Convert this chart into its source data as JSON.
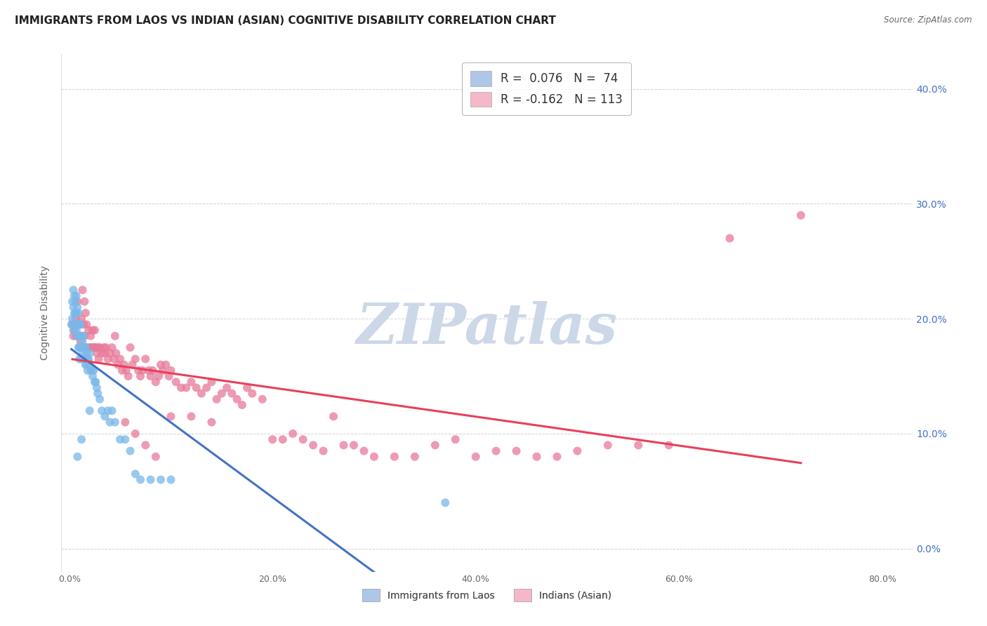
{
  "title": "IMMIGRANTS FROM LAOS VS INDIAN (ASIAN) COGNITIVE DISABILITY CORRELATION CHART",
  "source": "Source: ZipAtlas.com",
  "xlabel_ticks": [
    "0.0%",
    "20.0%",
    "40.0%",
    "60.0%",
    "80.0%"
  ],
  "ylabel_ticks": [
    "0.0%",
    "10.0%",
    "20.0%",
    "30.0%",
    "40.0%"
  ],
  "xlabel_values": [
    0.0,
    0.2,
    0.4,
    0.6,
    0.8
  ],
  "ylabel_values": [
    0.0,
    0.1,
    0.2,
    0.3,
    0.4
  ],
  "xlim": [
    -0.008,
    0.83
  ],
  "ylim": [
    -0.02,
    0.43
  ],
  "laos_color": "#7ab8e8",
  "laos_alpha": 0.75,
  "laos_trend_color": "#4472c4",
  "indian_color": "#e87a9a",
  "indian_alpha": 0.75,
  "indian_trend_color": "#e8405a",
  "legend_color_laos": "#aec6e8",
  "legend_color_indian": "#f4b8c8",
  "watermark": "ZIPatlas",
  "watermark_color": "#ccd8e8",
  "background_color": "#ffffff",
  "grid_color": "#cccccc",
  "title_fontsize": 11,
  "axis_label_fontsize": 10,
  "tick_fontsize": 9,
  "laos_x": [
    0.002,
    0.003,
    0.003,
    0.004,
    0.004,
    0.004,
    0.005,
    0.005,
    0.005,
    0.006,
    0.006,
    0.006,
    0.007,
    0.007,
    0.007,
    0.008,
    0.008,
    0.008,
    0.008,
    0.009,
    0.009,
    0.009,
    0.01,
    0.01,
    0.01,
    0.01,
    0.011,
    0.011,
    0.011,
    0.012,
    0.012,
    0.012,
    0.013,
    0.013,
    0.014,
    0.014,
    0.015,
    0.015,
    0.016,
    0.016,
    0.017,
    0.017,
    0.018,
    0.018,
    0.019,
    0.02,
    0.02,
    0.021,
    0.022,
    0.023,
    0.024,
    0.025,
    0.026,
    0.027,
    0.028,
    0.03,
    0.032,
    0.035,
    0.038,
    0.04,
    0.042,
    0.045,
    0.05,
    0.055,
    0.06,
    0.065,
    0.07,
    0.08,
    0.09,
    0.1,
    0.012,
    0.02,
    0.008,
    0.37
  ],
  "laos_y": [
    0.195,
    0.2,
    0.215,
    0.19,
    0.21,
    0.225,
    0.195,
    0.205,
    0.22,
    0.195,
    0.205,
    0.215,
    0.19,
    0.205,
    0.22,
    0.185,
    0.195,
    0.21,
    0.185,
    0.195,
    0.205,
    0.175,
    0.185,
    0.195,
    0.175,
    0.165,
    0.185,
    0.195,
    0.175,
    0.185,
    0.175,
    0.165,
    0.18,
    0.17,
    0.175,
    0.185,
    0.175,
    0.165,
    0.175,
    0.16,
    0.17,
    0.16,
    0.165,
    0.155,
    0.165,
    0.16,
    0.17,
    0.155,
    0.155,
    0.15,
    0.155,
    0.145,
    0.145,
    0.14,
    0.135,
    0.13,
    0.12,
    0.115,
    0.12,
    0.11,
    0.12,
    0.11,
    0.095,
    0.095,
    0.085,
    0.065,
    0.06,
    0.06,
    0.06,
    0.06,
    0.095,
    0.12,
    0.08,
    0.04
  ],
  "indian_x": [
    0.003,
    0.004,
    0.005,
    0.006,
    0.007,
    0.008,
    0.009,
    0.01,
    0.011,
    0.012,
    0.013,
    0.014,
    0.015,
    0.016,
    0.017,
    0.018,
    0.019,
    0.02,
    0.021,
    0.022,
    0.023,
    0.024,
    0.025,
    0.026,
    0.027,
    0.028,
    0.029,
    0.03,
    0.032,
    0.034,
    0.036,
    0.038,
    0.04,
    0.042,
    0.044,
    0.046,
    0.048,
    0.05,
    0.052,
    0.054,
    0.056,
    0.058,
    0.06,
    0.062,
    0.065,
    0.068,
    0.07,
    0.072,
    0.075,
    0.078,
    0.08,
    0.082,
    0.085,
    0.088,
    0.09,
    0.092,
    0.095,
    0.098,
    0.1,
    0.105,
    0.11,
    0.115,
    0.12,
    0.125,
    0.13,
    0.135,
    0.14,
    0.145,
    0.15,
    0.155,
    0.16,
    0.165,
    0.17,
    0.175,
    0.18,
    0.19,
    0.2,
    0.21,
    0.22,
    0.23,
    0.24,
    0.25,
    0.26,
    0.27,
    0.28,
    0.29,
    0.3,
    0.32,
    0.34,
    0.36,
    0.38,
    0.4,
    0.42,
    0.44,
    0.46,
    0.48,
    0.5,
    0.53,
    0.56,
    0.59,
    0.015,
    0.025,
    0.035,
    0.045,
    0.055,
    0.065,
    0.075,
    0.085,
    0.1,
    0.12,
    0.14,
    0.65,
    0.72
  ],
  "indian_y": [
    0.195,
    0.185,
    0.19,
    0.2,
    0.185,
    0.215,
    0.195,
    0.185,
    0.18,
    0.2,
    0.225,
    0.195,
    0.185,
    0.205,
    0.195,
    0.175,
    0.19,
    0.175,
    0.185,
    0.175,
    0.19,
    0.175,
    0.19,
    0.175,
    0.17,
    0.175,
    0.165,
    0.175,
    0.17,
    0.175,
    0.175,
    0.165,
    0.17,
    0.175,
    0.165,
    0.17,
    0.16,
    0.165,
    0.155,
    0.16,
    0.155,
    0.15,
    0.175,
    0.16,
    0.165,
    0.155,
    0.15,
    0.155,
    0.165,
    0.155,
    0.15,
    0.155,
    0.145,
    0.15,
    0.16,
    0.155,
    0.16,
    0.15,
    0.155,
    0.145,
    0.14,
    0.14,
    0.145,
    0.14,
    0.135,
    0.14,
    0.145,
    0.13,
    0.135,
    0.14,
    0.135,
    0.13,
    0.125,
    0.14,
    0.135,
    0.13,
    0.095,
    0.095,
    0.1,
    0.095,
    0.09,
    0.085,
    0.115,
    0.09,
    0.09,
    0.085,
    0.08,
    0.08,
    0.08,
    0.09,
    0.095,
    0.08,
    0.085,
    0.085,
    0.08,
    0.08,
    0.085,
    0.09,
    0.09,
    0.09,
    0.215,
    0.175,
    0.17,
    0.185,
    0.11,
    0.1,
    0.09,
    0.08,
    0.115,
    0.115,
    0.11,
    0.27,
    0.29
  ]
}
